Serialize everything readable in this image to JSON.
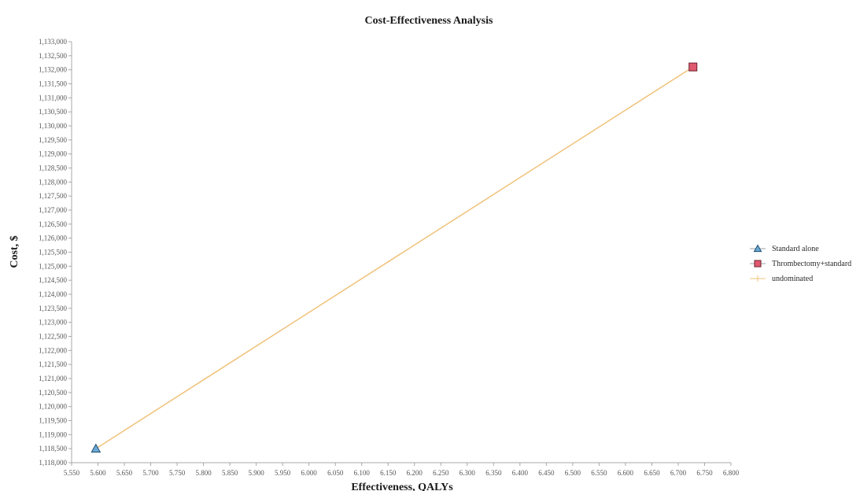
{
  "chart_data": {
    "type": "scatter",
    "title": "Cost-Effectiveness Analysis",
    "xlabel": "Effectiveness, QALYs",
    "ylabel": "Cost, $",
    "xlim": [
      5.55,
      6.8
    ],
    "ylim": [
      1118000,
      1133000
    ],
    "grid": false,
    "legend_position": "right",
    "x_tick_labels": [
      "5.550",
      "5.600",
      "5.650",
      "5.700",
      "5.750",
      "5.800",
      "5.850",
      "5.900",
      "5.950",
      "6.000",
      "6.050",
      "6.100",
      "6.150",
      "6.200",
      "6.250",
      "6.300",
      "6.350",
      "6.400",
      "6.450",
      "6.500",
      "6.550",
      "6.600",
      "6.650",
      "6.700",
      "6.750",
      "6.800"
    ],
    "y_tick_labels": [
      "1,118,000",
      "1,118,500",
      "1,119,000",
      "1,119,500",
      "1,120,000",
      "1,120,500",
      "1,121,000",
      "1,121,500",
      "1,122,000",
      "1,122,500",
      "1,123,000",
      "1,123,500",
      "1,124,000",
      "1,124,500",
      "1,125,000",
      "1,125,500",
      "1,126,000",
      "1,126,500",
      "1,127,000",
      "1,127,500",
      "1,128,000",
      "1,128,500",
      "1,129,000",
      "1,129,500",
      "1,130,000",
      "1,130,500",
      "1,131,000",
      "1,131,500",
      "1,132,000",
      "1,132,500",
      "1,133,000"
    ],
    "series": [
      {
        "name": "Standard alone",
        "marker": "triangle-icon",
        "color": "#6aa9d6",
        "x": [
          5.596
        ],
        "y": [
          1118500
        ]
      },
      {
        "name": "Thrombectomy+standard",
        "marker": "square-icon",
        "color": "#e0586f",
        "x": [
          6.728
        ],
        "y": [
          1132100
        ]
      },
      {
        "name": "undominated",
        "marker": "line-icon",
        "color": "#f0c27a",
        "x": [
          5.596,
          6.728
        ],
        "y": [
          1118500,
          1132100
        ]
      }
    ]
  }
}
